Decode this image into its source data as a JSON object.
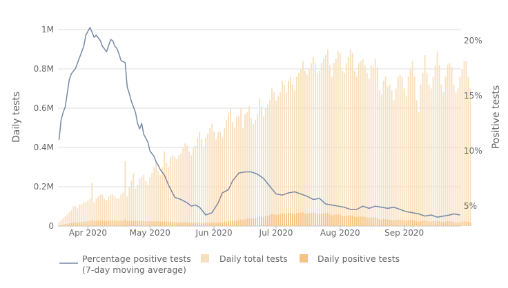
{
  "chart_data": {
    "type": "bar",
    "title": "",
    "start_date": "2020-03-18",
    "end_date": "2020-09-28",
    "x_ticks": [
      {
        "label": "Apr 2020",
        "date": "2020-04-01"
      },
      {
        "label": "May 2020",
        "date": "2020-05-01"
      },
      {
        "label": "Jun 2020",
        "date": "2020-06-01"
      },
      {
        "label": "Jul 2020",
        "date": "2020-07-01"
      },
      {
        "label": "Aug 2020",
        "date": "2020-08-01"
      },
      {
        "label": "Sep 2020",
        "date": "2020-09-01"
      }
    ],
    "y_left": {
      "label": "Daily tests",
      "ylim": [
        0,
        1000000
      ],
      "ticks": [
        {
          "value": 0,
          "label": "0"
        },
        {
          "value": 200000,
          "label": "0.2M"
        },
        {
          "value": 400000,
          "label": "0.4M"
        },
        {
          "value": 600000,
          "label": "0.6M"
        },
        {
          "value": 800000,
          "label": "0.8M"
        },
        {
          "value": 1000000,
          "label": "1M"
        }
      ]
    },
    "y_right": {
      "label": "Positive tests",
      "ylim": [
        3.2,
        21.0
      ],
      "ticks": [
        {
          "value": 5,
          "label": "5%"
        },
        {
          "value": 10,
          "label": "10%"
        },
        {
          "value": 15,
          "label": "15%"
        },
        {
          "value": 20,
          "label": "20%"
        }
      ]
    },
    "grid": true,
    "legend_position": "bottom",
    "series": [
      {
        "name": "Daily total tests",
        "kind": "bar",
        "color": "#f8dfbd",
        "values": [
          20000,
          30000,
          40000,
          50000,
          60000,
          70000,
          80000,
          100000,
          100000,
          90000,
          110000,
          110000,
          120000,
          120000,
          130000,
          140000,
          220000,
          120000,
          140000,
          150000,
          160000,
          160000,
          140000,
          130000,
          150000,
          160000,
          160000,
          150000,
          140000,
          140000,
          160000,
          170000,
          330000,
          150000,
          200000,
          230000,
          270000,
          190000,
          210000,
          240000,
          250000,
          260000,
          230000,
          210000,
          250000,
          270000,
          300000,
          320000,
          280000,
          260000,
          300000,
          380000,
          320000,
          300000,
          350000,
          360000,
          350000,
          340000,
          360000,
          370000,
          400000,
          420000,
          410000,
          380000,
          360000,
          400000,
          410000,
          450000,
          480000,
          440000,
          400000,
          450000,
          470000,
          500000,
          520000,
          480000,
          440000,
          480000,
          480000,
          450000,
          500000,
          540000,
          570000,
          600000,
          530000,
          500000,
          560000,
          560000,
          600000,
          500000,
          570000,
          580000,
          610000,
          550000,
          520000,
          540000,
          570000,
          650000,
          610000,
          560000,
          600000,
          620000,
          640000,
          700000,
          680000,
          640000,
          660000,
          680000,
          740000,
          720000,
          680000,
          740000,
          760000,
          720000,
          690000,
          760000,
          780000,
          800000,
          840000,
          790000,
          770000,
          800000,
          830000,
          860000,
          830000,
          780000,
          790000,
          830000,
          850000,
          870000,
          900000,
          820000,
          760000,
          830000,
          850000,
          890000,
          880000,
          790000,
          780000,
          830000,
          860000,
          900000,
          880000,
          790000,
          760000,
          830000,
          840000,
          850000,
          820000,
          780000,
          750000,
          820000,
          810000,
          850000,
          810000,
          690000,
          670000,
          740000,
          760000,
          710000,
          720000,
          690000,
          640000,
          700000,
          760000,
          770000,
          760000,
          700000,
          660000,
          760000,
          800000,
          840000,
          760000,
          640000,
          580000,
          720000,
          780000,
          870000,
          780000,
          720000,
          700000,
          760000,
          820000,
          890000,
          820000,
          720000,
          680000,
          760000,
          820000,
          830000,
          810000,
          720000,
          680000,
          700000,
          760000,
          800000,
          840000,
          840000,
          760000,
          700000
        ],
        "bar_values": [
          20000,
          30000,
          40000,
          50000,
          60000,
          70000,
          80000,
          100000,
          100000,
          90000,
          110000,
          110000,
          120000,
          120000,
          130000,
          140000,
          220000,
          120000,
          140000,
          150000,
          160000,
          160000,
          140000,
          130000,
          150000,
          160000,
          160000,
          150000,
          140000,
          140000,
          160000,
          170000,
          330000,
          150000,
          200000,
          230000,
          270000,
          190000,
          210000,
          240000,
          250000,
          260000,
          230000,
          210000,
          250000,
          270000,
          300000,
          320000,
          280000,
          260000,
          300000,
          380000,
          320000,
          300000,
          350000,
          360000,
          350000,
          340000,
          360000,
          370000,
          400000,
          420000,
          410000,
          380000,
          360000,
          400000,
          410000,
          450000,
          480000,
          440000,
          400000,
          450000,
          470000,
          500000,
          520000,
          480000,
          440000,
          480000,
          480000,
          450000,
          500000,
          540000,
          570000,
          600000,
          530000,
          500000,
          560000,
          560000,
          600000,
          500000,
          570000,
          580000,
          610000,
          550000,
          520000,
          540000,
          570000,
          650000,
          610000,
          560000,
          600000,
          620000,
          640000,
          700000,
          680000,
          640000,
          660000,
          680000,
          740000,
          720000,
          680000,
          740000,
          760000,
          720000,
          690000,
          760000,
          780000,
          800000,
          840000,
          790000,
          770000,
          800000,
          830000,
          860000,
          830000,
          780000,
          790000,
          830000,
          850000,
          870000,
          900000,
          820000,
          760000,
          830000,
          850000,
          890000,
          880000,
          790000,
          780000,
          830000,
          860000,
          900000,
          880000,
          790000,
          760000,
          830000,
          840000,
          850000,
          820000,
          780000,
          750000,
          820000,
          810000,
          850000,
          810000,
          690000,
          670000,
          740000,
          760000,
          710000,
          720000,
          690000,
          640000,
          700000,
          760000,
          770000,
          760000,
          700000,
          660000,
          760000,
          800000,
          840000,
          760000,
          640000,
          580000,
          720000,
          780000,
          870000,
          780000,
          720000,
          700000,
          760000,
          820000,
          890000,
          820000,
          720000,
          680000,
          760000,
          820000,
          830000,
          810000,
          720000,
          680000,
          700000,
          760000,
          800000,
          840000,
          840000,
          760000,
          700000
        ]
      },
      {
        "name": "Daily positive tests",
        "kind": "bar",
        "color": "#f5c383",
        "values": [
          3000,
          5000,
          7000,
          9000,
          11000,
          13000,
          15000,
          18000,
          18000,
          17000,
          20000,
          21000,
          22000,
          23000,
          24000,
          25000,
          30000,
          25000,
          27000,
          28000,
          28000,
          27000,
          26000,
          25000,
          27000,
          28000,
          28000,
          27000,
          26000,
          25000,
          27000,
          28000,
          33000,
          26000,
          27000,
          27000,
          28000,
          25000,
          25000,
          26000,
          26000,
          25000,
          24000,
          23000,
          24000,
          24000,
          24000,
          24000,
          23000,
          22000,
          22000,
          24000,
          22000,
          21000,
          22000,
          21000,
          20000,
          19000,
          19000,
          19000,
          19000,
          19000,
          18000,
          17000,
          16000,
          17000,
          17000,
          17000,
          18000,
          17000,
          16000,
          17000,
          17000,
          18000,
          18000,
          17000,
          16000,
          18000,
          18000,
          18000,
          20000,
          22000,
          24000,
          27000,
          26000,
          25000,
          28000,
          30000,
          33000,
          30000,
          34000,
          37000,
          40000,
          38000,
          37000,
          39000,
          42000,
          49000,
          47000,
          45000,
          50000,
          52000,
          55000,
          61000,
          60000,
          57000,
          59000,
          61000,
          66000,
          64000,
          60000,
          66000,
          67000,
          64000,
          61000,
          66000,
          67000,
          68000,
          70000,
          65000,
          63000,
          65000,
          67000,
          68000,
          65000,
          61000,
          61000,
          63000,
          64000,
          65000,
          66000,
          59000,
          54000,
          58000,
          58000,
          60000,
          58000,
          51000,
          50000,
          52000,
          53000,
          55000,
          53000,
          47000,
          45000,
          48000,
          48000,
          48000,
          46000,
          43000,
          41000,
          44000,
          43000,
          44000,
          41000,
          34000,
          32000,
          35000,
          35000,
          32000,
          32000,
          30000,
          28000,
          30000,
          32000,
          32000,
          31000,
          28000,
          26000,
          29000,
          30000,
          31000,
          27000,
          23000,
          21000,
          25000,
          27000,
          29000,
          26000,
          23000,
          22000,
          24000,
          25000,
          27000,
          25000,
          22000,
          20000,
          22000,
          24000,
          24000,
          23000,
          20000,
          19000,
          19000,
          21000,
          22000,
          23000,
          23000,
          21000,
          19000
        ]
      },
      {
        "name": "Percentage positive tests (7-day moving average)",
        "kind": "line",
        "axis": "right",
        "color": "#7688a5",
        "x_dates": [
          "2020-03-18",
          "2020-03-19",
          "2020-03-20",
          "2020-03-21",
          "2020-03-23",
          "2020-03-24",
          "2020-03-26",
          "2020-03-28",
          "2020-03-30",
          "2020-03-31",
          "2020-04-02",
          "2020-04-04",
          "2020-04-05",
          "2020-04-07",
          "2020-04-08",
          "2020-04-10",
          "2020-04-12",
          "2020-04-13",
          "2020-04-14",
          "2020-04-15",
          "2020-04-16",
          "2020-04-17",
          "2020-04-19",
          "2020-04-20",
          "2020-04-21",
          "2020-04-22",
          "2020-04-24",
          "2020-04-25",
          "2020-04-26",
          "2020-04-27",
          "2020-04-28",
          "2020-04-30",
          "2020-05-01",
          "2020-05-03",
          "2020-05-04",
          "2020-05-05",
          "2020-05-06",
          "2020-05-08",
          "2020-05-10",
          "2020-05-13",
          "2020-05-16",
          "2020-05-19",
          "2020-05-21",
          "2020-05-23",
          "2020-05-25",
          "2020-05-28",
          "2020-05-31",
          "2020-06-03",
          "2020-06-05",
          "2020-06-08",
          "2020-06-10",
          "2020-06-13",
          "2020-06-16",
          "2020-06-19",
          "2020-06-22",
          "2020-06-25",
          "2020-06-28",
          "2020-07-01",
          "2020-07-04",
          "2020-07-07",
          "2020-07-10",
          "2020-07-13",
          "2020-07-16",
          "2020-07-19",
          "2020-07-22",
          "2020-07-25",
          "2020-07-28",
          "2020-07-31",
          "2020-08-03",
          "2020-08-06",
          "2020-08-09",
          "2020-08-12",
          "2020-08-15",
          "2020-08-18",
          "2020-08-21",
          "2020-08-24",
          "2020-08-27",
          "2020-08-30",
          "2020-09-02",
          "2020-09-05",
          "2020-09-08",
          "2020-09-11",
          "2020-09-14",
          "2020-09-17",
          "2020-09-20",
          "2020-09-23",
          "2020-09-25",
          "2020-09-28"
        ],
        "values": [
          11.0,
          12.8,
          13.5,
          14.0,
          16.5,
          17.0,
          17.5,
          18.5,
          19.5,
          20.5,
          21.2,
          20.3,
          20.5,
          20.0,
          19.5,
          19.0,
          20.1,
          20.0,
          19.5,
          19.3,
          18.8,
          18.2,
          18.0,
          15.8,
          15.2,
          14.5,
          13.5,
          12.5,
          12.0,
          12.5,
          11.5,
          10.8,
          10.0,
          9.5,
          9.0,
          8.7,
          8.3,
          7.8,
          6.9,
          5.8,
          5.6,
          5.3,
          5.0,
          5.1,
          4.9,
          4.2,
          4.4,
          5.3,
          6.2,
          6.5,
          7.3,
          8.0,
          8.1,
          8.1,
          7.9,
          7.5,
          6.8,
          6.1,
          6.0,
          6.2,
          6.3,
          6.1,
          5.9,
          5.6,
          5.7,
          5.2,
          5.1,
          5.0,
          4.9,
          4.7,
          4.7,
          5.0,
          4.8,
          5.0,
          4.9,
          4.8,
          4.9,
          4.7,
          4.5,
          4.4,
          4.3,
          4.1,
          4.2,
          4.0,
          4.1,
          4.2,
          4.3,
          4.2
        ]
      }
    ]
  },
  "legend": [
    {
      "kind": "line",
      "color": "#7688a5",
      "label_line1": "Percentage positive tests",
      "label_line2": "(7-day moving average)"
    },
    {
      "kind": "box",
      "color": "#f8dfbd",
      "label_line1": "Daily total tests"
    },
    {
      "kind": "box",
      "color": "#f5c383",
      "label_line1": "Daily positive tests"
    }
  ]
}
